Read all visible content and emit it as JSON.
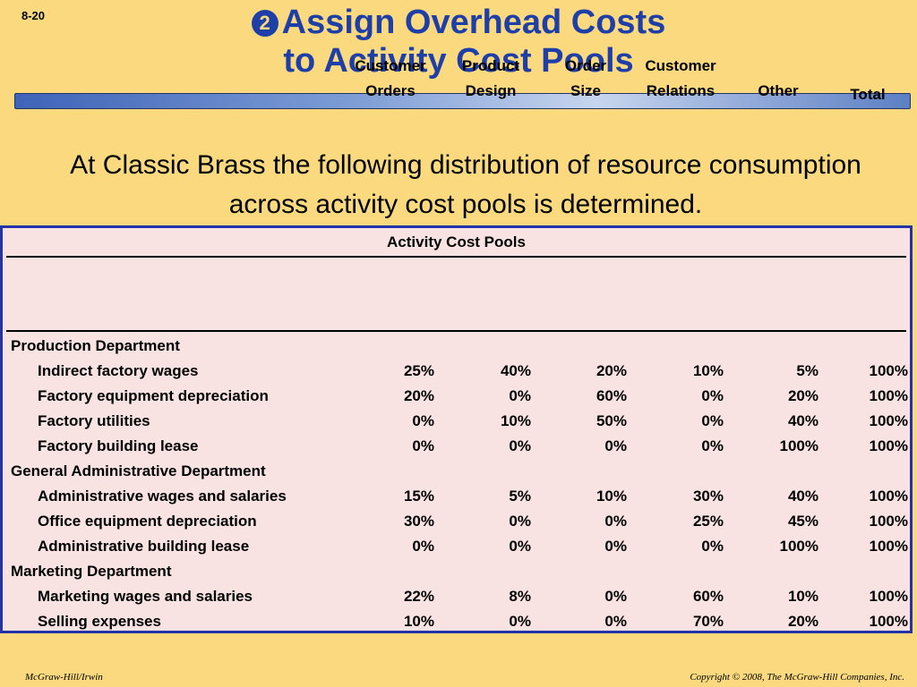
{
  "slide_number": "8-20",
  "title_bullet": "2",
  "title_line1": "Assign Overhead Costs",
  "title_line2": "to Activity Cost Pools",
  "intro_text": "At Classic Brass the following distribution of resource consumption across activity cost pools is determined.",
  "table": {
    "header_title": "Activity Cost Pools",
    "columns": [
      {
        "line1": "Customer",
        "line2": "Orders"
      },
      {
        "line1": "Product",
        "line2": "Design"
      },
      {
        "line1": "Order",
        "line2": "Size"
      },
      {
        "line1": "Customer",
        "line2": "Relations"
      },
      {
        "line1": "",
        "line2": "Other"
      },
      {
        "line1": "",
        "line2": "Total"
      }
    ],
    "rows": [
      {
        "label": "Production Department",
        "section": true,
        "values": []
      },
      {
        "label": "Indirect factory wages",
        "section": false,
        "values": [
          "25%",
          "40%",
          "20%",
          "10%",
          "5%",
          "100%"
        ]
      },
      {
        "label": "Factory equipment depreciation",
        "section": false,
        "values": [
          "20%",
          "0%",
          "60%",
          "0%",
          "20%",
          "100%"
        ]
      },
      {
        "label": "Factory utilities",
        "section": false,
        "values": [
          "0%",
          "10%",
          "50%",
          "0%",
          "40%",
          "100%"
        ]
      },
      {
        "label": "Factory building lease",
        "section": false,
        "values": [
          "0%",
          "0%",
          "0%",
          "0%",
          "100%",
          "100%"
        ]
      },
      {
        "label": "General Administrative Department",
        "section": true,
        "values": []
      },
      {
        "label": "Administrative wages and salaries",
        "section": false,
        "values": [
          "15%",
          "5%",
          "10%",
          "30%",
          "40%",
          "100%"
        ]
      },
      {
        "label": "Office equipment depreciation",
        "section": false,
        "values": [
          "30%",
          "0%",
          "0%",
          "25%",
          "45%",
          "100%"
        ]
      },
      {
        "label": "Administrative building lease",
        "section": false,
        "values": [
          "0%",
          "0%",
          "0%",
          "0%",
          "100%",
          "100%"
        ]
      },
      {
        "label": "Marketing Department",
        "section": true,
        "values": []
      },
      {
        "label": "Marketing wages and salaries",
        "section": false,
        "values": [
          "22%",
          "8%",
          "0%",
          "60%",
          "10%",
          "100%"
        ]
      },
      {
        "label": "Selling expenses",
        "section": false,
        "values": [
          "10%",
          "0%",
          "0%",
          "70%",
          "20%",
          "100%"
        ]
      }
    ]
  },
  "footer_left": "McGraw-Hill/Irwin",
  "footer_right": "Copyright © 2008, The McGraw-Hill Companies, Inc."
}
